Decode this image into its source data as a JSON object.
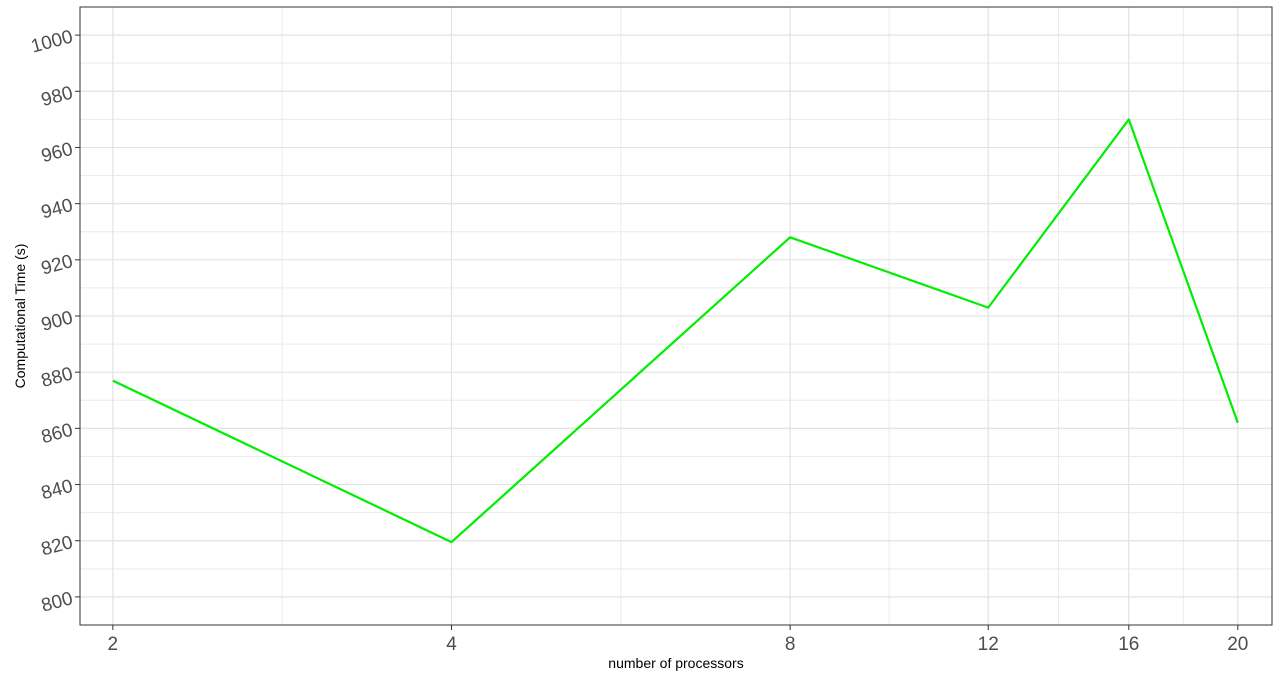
{
  "chart_data": {
    "type": "line",
    "title": "",
    "xlabel": "number of processors",
    "ylabel": "Computational Time (s)",
    "x_scale": "log2",
    "xlim": [
      1.87,
      21.45
    ],
    "ylim": [
      790,
      1010
    ],
    "x_ticks": [
      2,
      4,
      8,
      12,
      16,
      20
    ],
    "x_tick_labels": [
      "2",
      "4",
      "8",
      "12",
      "16",
      "20"
    ],
    "y_ticks": [
      800,
      820,
      840,
      860,
      880,
      900,
      920,
      940,
      960,
      980,
      1000
    ],
    "y_tick_labels": [
      "800",
      "820",
      "840",
      "860",
      "880",
      "900",
      "920",
      "940",
      "960",
      "980",
      "1000"
    ],
    "y_tick_rotation_deg": -15,
    "grid": true,
    "legend": "none",
    "series": [
      {
        "color": "#00ee00",
        "x": [
          2,
          4,
          8,
          12,
          16,
          20
        ],
        "y": [
          877,
          819.5,
          928,
          903,
          970,
          862
        ]
      }
    ]
  }
}
